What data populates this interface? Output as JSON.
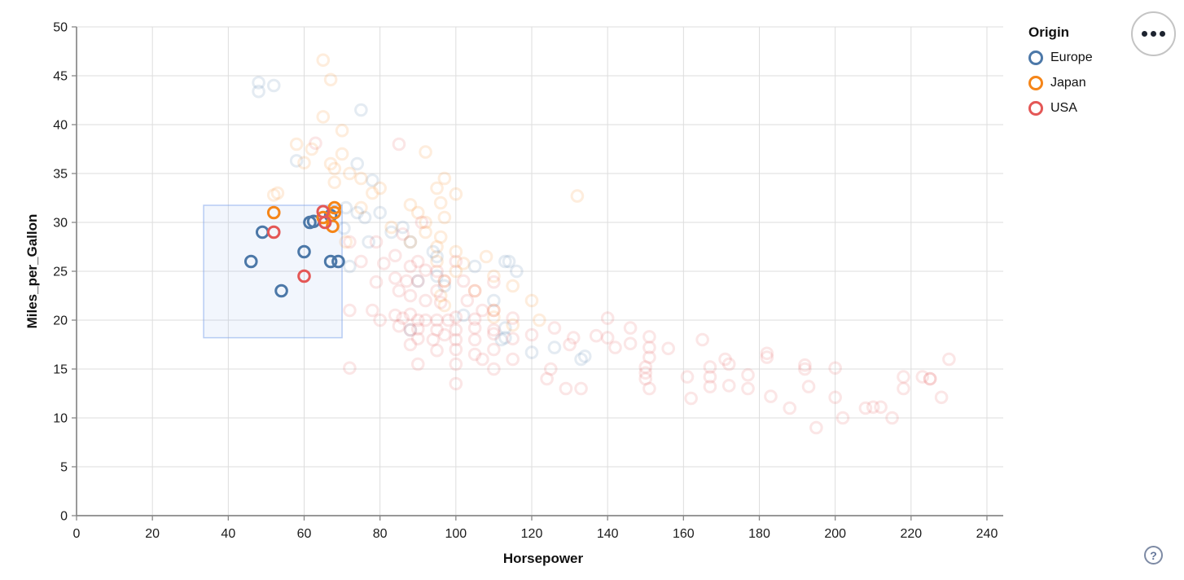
{
  "controls": {
    "menu_button": "ellipsis-menu",
    "help_label": "?"
  },
  "chart_data": {
    "type": "scatter",
    "title": "",
    "xlabel": "Horsepower",
    "ylabel": "Miles_per_Gallon",
    "xlim": [
      0,
      240
    ],
    "ylim": [
      0,
      50
    ],
    "xticks": [
      0,
      20,
      40,
      60,
      80,
      100,
      120,
      140,
      160,
      180,
      200,
      220,
      240
    ],
    "yticks": [
      0,
      5,
      10,
      15,
      20,
      25,
      30,
      35,
      40,
      45,
      50
    ],
    "grid": true,
    "legend": {
      "title": "Origin",
      "position": "top-right",
      "entries": [
        {
          "label": "Europe",
          "color": "#4c78a8"
        },
        {
          "label": "Japan",
          "color": "#f58518"
        },
        {
          "label": "USA",
          "color": "#e45756"
        }
      ]
    },
    "brush_selection": {
      "hp": [
        33.5,
        70
      ],
      "mpg": [
        18.2,
        31.75
      ]
    },
    "unselected_opacity": 0.15,
    "series": [
      {
        "name": "Europe",
        "color": "#4c78a8",
        "selected": [
          [
            46,
            26
          ],
          [
            49,
            29
          ],
          [
            54,
            23
          ],
          [
            60,
            27
          ],
          [
            67,
            26
          ],
          [
            69,
            26
          ],
          [
            67,
            30.7
          ],
          [
            62.5,
            30.1
          ],
          [
            61.5,
            30
          ]
        ],
        "unselected": [
          [
            48,
            44.3
          ],
          [
            48,
            43.4
          ],
          [
            52,
            44
          ],
          [
            75,
            41.5
          ],
          [
            74,
            36
          ],
          [
            58,
            36.3
          ],
          [
            78,
            34.3
          ],
          [
            71,
            31.5
          ],
          [
            74,
            31
          ],
          [
            80,
            31
          ],
          [
            76,
            30.5
          ],
          [
            70.5,
            29.4
          ],
          [
            83,
            29
          ],
          [
            86,
            29.5
          ],
          [
            88,
            28
          ],
          [
            77,
            28
          ],
          [
            94,
            27
          ],
          [
            95,
            26.5
          ],
          [
            113,
            26
          ],
          [
            114,
            26
          ],
          [
            116,
            25
          ],
          [
            105,
            25.5
          ],
          [
            72,
            25.5
          ],
          [
            95,
            24.5
          ],
          [
            90,
            24
          ],
          [
            97,
            23.5
          ],
          [
            110,
            22
          ],
          [
            102,
            20.5
          ],
          [
            113,
            19.2
          ],
          [
            113,
            18.2
          ],
          [
            88,
            19
          ],
          [
            112,
            18
          ],
          [
            120,
            16.7
          ],
          [
            126,
            17.2
          ],
          [
            134,
            16.3
          ],
          [
            133,
            16
          ]
        ]
      },
      {
        "name": "Japan",
        "color": "#f58518",
        "selected": [
          [
            52,
            31
          ],
          [
            68,
            31.5
          ],
          [
            68,
            31
          ],
          [
            65,
            30.5
          ],
          [
            67.5,
            29.6
          ]
        ],
        "unselected": [
          [
            65,
            46.6
          ],
          [
            67,
            44.6
          ],
          [
            65,
            40.8
          ],
          [
            70,
            39.4
          ],
          [
            58,
            38
          ],
          [
            62,
            37.5
          ],
          [
            70,
            37
          ],
          [
            92,
            37.2
          ],
          [
            60,
            36.1
          ],
          [
            67,
            36
          ],
          [
            68,
            35.5
          ],
          [
            72,
            35
          ],
          [
            97,
            34.5
          ],
          [
            75,
            34.5
          ],
          [
            68,
            34.1
          ],
          [
            95,
            33.5
          ],
          [
            53,
            33
          ],
          [
            52,
            32.8
          ],
          [
            80,
            33.5
          ],
          [
            78,
            33
          ],
          [
            100,
            32.9
          ],
          [
            132,
            32.7
          ],
          [
            96,
            32
          ],
          [
            88,
            31.8
          ],
          [
            75,
            31.5
          ],
          [
            90,
            31
          ],
          [
            97,
            30.5
          ],
          [
            92,
            30
          ],
          [
            83,
            29.5
          ],
          [
            92,
            29
          ],
          [
            96,
            28.5
          ],
          [
            88,
            28
          ],
          [
            71,
            28
          ],
          [
            95,
            27.5
          ],
          [
            100,
            27
          ],
          [
            108,
            26.5
          ],
          [
            95,
            26
          ],
          [
            102,
            25.8
          ],
          [
            100,
            25
          ],
          [
            110,
            24.5
          ],
          [
            97,
            24
          ],
          [
            115,
            23.5
          ],
          [
            105,
            23
          ],
          [
            96,
            22.5
          ],
          [
            120,
            22
          ],
          [
            97,
            21.5
          ],
          [
            110,
            21
          ],
          [
            110,
            20.3
          ],
          [
            122,
            20
          ],
          [
            115,
            19.5
          ]
        ]
      },
      {
        "name": "USA",
        "color": "#e45756",
        "selected": [
          [
            52,
            29
          ],
          [
            60,
            24.5
          ],
          [
            65,
            31.1
          ],
          [
            65.5,
            30
          ]
        ],
        "unselected": [
          [
            63,
            38.1
          ],
          [
            85,
            38
          ],
          [
            91,
            30
          ],
          [
            86,
            28.8
          ],
          [
            79,
            28
          ],
          [
            72,
            28
          ],
          [
            75,
            26
          ],
          [
            81,
            25.8
          ],
          [
            84,
            26.6
          ],
          [
            88,
            25.5
          ],
          [
            90,
            26
          ],
          [
            95,
            25
          ],
          [
            100,
            26
          ],
          [
            92,
            25.1
          ],
          [
            87,
            24
          ],
          [
            84,
            24.3
          ],
          [
            90,
            24
          ],
          [
            97,
            24
          ],
          [
            102,
            24
          ],
          [
            79,
            23.9
          ],
          [
            85,
            23
          ],
          [
            95,
            23
          ],
          [
            105,
            23
          ],
          [
            110,
            23.9
          ],
          [
            88,
            22.5
          ],
          [
            92,
            22
          ],
          [
            96,
            21.8
          ],
          [
            103,
            22
          ],
          [
            107,
            21
          ],
          [
            72,
            21
          ],
          [
            78,
            21
          ],
          [
            80,
            20
          ],
          [
            84,
            20.5
          ],
          [
            86,
            20.2
          ],
          [
            88,
            20.6
          ],
          [
            90,
            20
          ],
          [
            95,
            20
          ],
          [
            98,
            20
          ],
          [
            100,
            20.3
          ],
          [
            105,
            20.1
          ],
          [
            110,
            21
          ],
          [
            85,
            19.4
          ],
          [
            88,
            19
          ],
          [
            90,
            19.1
          ],
          [
            95,
            19
          ],
          [
            100,
            19
          ],
          [
            105,
            19.2
          ],
          [
            110,
            19
          ],
          [
            115,
            20.2
          ],
          [
            92,
            20
          ],
          [
            94,
            18
          ],
          [
            90,
            18.1
          ],
          [
            97,
            18.5
          ],
          [
            100,
            18
          ],
          [
            105,
            18
          ],
          [
            110,
            18.6
          ],
          [
            115,
            18.1
          ],
          [
            120,
            18.5
          ],
          [
            88,
            17.5
          ],
          [
            95,
            16.9
          ],
          [
            100,
            17
          ],
          [
            105,
            16.5
          ],
          [
            110,
            17
          ],
          [
            115,
            16
          ],
          [
            100,
            15.5
          ],
          [
            110,
            15
          ],
          [
            72,
            15.1
          ],
          [
            90,
            15.5
          ],
          [
            100,
            13.5
          ],
          [
            107,
            16
          ],
          [
            126,
            19.2
          ],
          [
            131,
            18.2
          ],
          [
            130,
            17.5
          ],
          [
            137,
            18.4
          ],
          [
            140,
            20.2
          ],
          [
            140,
            18.2
          ],
          [
            142,
            17.2
          ],
          [
            146,
            19.2
          ],
          [
            146,
            17.6
          ],
          [
            151,
            18.3
          ],
          [
            151,
            17.2
          ],
          [
            151,
            16.2
          ],
          [
            150,
            15.2
          ],
          [
            150,
            14.6
          ],
          [
            150,
            14
          ],
          [
            151,
            13
          ],
          [
            156,
            17.1
          ],
          [
            161,
            14.2
          ],
          [
            162,
            12
          ],
          [
            165,
            18
          ],
          [
            167,
            15.2
          ],
          [
            167,
            14.2
          ],
          [
            167,
            13.2
          ],
          [
            171,
            16
          ],
          [
            172,
            15.5
          ],
          [
            172,
            13.3
          ],
          [
            177,
            14.4
          ],
          [
            177,
            13
          ],
          [
            182,
            16.6
          ],
          [
            182,
            16.2
          ],
          [
            183,
            12.2
          ],
          [
            188,
            11
          ],
          [
            192,
            15.4
          ],
          [
            192,
            15
          ],
          [
            193,
            13.2
          ],
          [
            200,
            15.1
          ],
          [
            200,
            12.1
          ],
          [
            195,
            9
          ],
          [
            202,
            10
          ],
          [
            208,
            11
          ],
          [
            210,
            11.1
          ],
          [
            212,
            11.1
          ],
          [
            215,
            10
          ],
          [
            218,
            14.2
          ],
          [
            218,
            13
          ],
          [
            223,
            14.2
          ],
          [
            225,
            14
          ],
          [
            225,
            14
          ],
          [
            228,
            12.1
          ],
          [
            230,
            16
          ],
          [
            129,
            13
          ],
          [
            133,
            13
          ],
          [
            125,
            15
          ],
          [
            124,
            14
          ]
        ]
      }
    ]
  }
}
